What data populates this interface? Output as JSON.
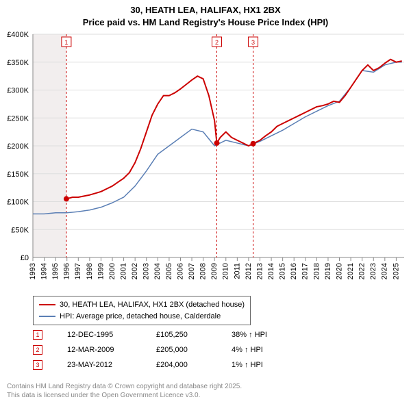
{
  "title_line1": "30, HEATH LEA, HALIFAX, HX1 2BX",
  "title_line2": "Price paid vs. HM Land Registry's House Price Index (HPI)",
  "chart": {
    "type": "line",
    "background_color": "#ffffff",
    "plot_bg_left": "#f2eeee",
    "plot_bg_right": "#ffffff",
    "grid_color": "#dddddd",
    "axis_color": "#888888",
    "tick_fontsize": 11,
    "x_years": [
      1993,
      1994,
      1995,
      1996,
      1997,
      1998,
      1999,
      2000,
      2001,
      2002,
      2003,
      2004,
      2005,
      2006,
      2007,
      2008,
      2009,
      2010,
      2011,
      2012,
      2013,
      2014,
      2015,
      2016,
      2017,
      2018,
      2019,
      2020,
      2021,
      2022,
      2023,
      2024,
      2025
    ],
    "x_range": [
      1993,
      2025.7
    ],
    "y_range": [
      0,
      400
    ],
    "y_ticks": [
      0,
      50,
      100,
      150,
      200,
      250,
      300,
      350,
      400
    ],
    "y_tick_labels": [
      "£0",
      "£50K",
      "£100K",
      "£150K",
      "£200K",
      "£250K",
      "£300K",
      "£350K",
      "£400K"
    ],
    "series": [
      {
        "name": "price_paid",
        "label": "30, HEATH LEA, HALIFAX, HX1 2BX (detached house)",
        "color": "#cc0000",
        "width": 2,
        "data": [
          [
            1995.95,
            105
          ],
          [
            1996.5,
            108
          ],
          [
            1997,
            108
          ],
          [
            1997.5,
            110
          ],
          [
            1998,
            112
          ],
          [
            1998.5,
            115
          ],
          [
            1999,
            118
          ],
          [
            1999.5,
            123
          ],
          [
            2000,
            128
          ],
          [
            2000.5,
            135
          ],
          [
            2001,
            142
          ],
          [
            2001.5,
            152
          ],
          [
            2002,
            170
          ],
          [
            2002.5,
            195
          ],
          [
            2003,
            225
          ],
          [
            2003.5,
            255
          ],
          [
            2004,
            275
          ],
          [
            2004.5,
            290
          ],
          [
            2005,
            290
          ],
          [
            2005.5,
            295
          ],
          [
            2006,
            302
          ],
          [
            2006.5,
            310
          ],
          [
            2007,
            318
          ],
          [
            2007.5,
            325
          ],
          [
            2008,
            320
          ],
          [
            2008.5,
            290
          ],
          [
            2009,
            245
          ],
          [
            2009.2,
            205
          ],
          [
            2009.5,
            215
          ],
          [
            2010,
            225
          ],
          [
            2010.5,
            215
          ],
          [
            2011,
            210
          ],
          [
            2011.5,
            205
          ],
          [
            2012,
            200
          ],
          [
            2012.4,
            204
          ],
          [
            2013,
            210
          ],
          [
            2013.5,
            218
          ],
          [
            2014,
            225
          ],
          [
            2014.5,
            235
          ],
          [
            2015,
            240
          ],
          [
            2015.5,
            245
          ],
          [
            2016,
            250
          ],
          [
            2016.5,
            255
          ],
          [
            2017,
            260
          ],
          [
            2017.5,
            265
          ],
          [
            2018,
            270
          ],
          [
            2018.5,
            272
          ],
          [
            2019,
            275
          ],
          [
            2019.5,
            280
          ],
          [
            2020,
            278
          ],
          [
            2020.5,
            290
          ],
          [
            2021,
            305
          ],
          [
            2021.5,
            320
          ],
          [
            2022,
            335
          ],
          [
            2022.5,
            345
          ],
          [
            2023,
            335
          ],
          [
            2023.5,
            340
          ],
          [
            2024,
            348
          ],
          [
            2024.5,
            355
          ],
          [
            2025,
            350
          ],
          [
            2025.5,
            352
          ]
        ]
      },
      {
        "name": "hpi",
        "label": "HPI: Average price, detached house, Calderdale",
        "color": "#5b7fb5",
        "width": 1.5,
        "data": [
          [
            1993,
            78
          ],
          [
            1994,
            78
          ],
          [
            1995,
            80
          ],
          [
            1996,
            80
          ],
          [
            1997,
            82
          ],
          [
            1998,
            85
          ],
          [
            1999,
            90
          ],
          [
            2000,
            98
          ],
          [
            2001,
            108
          ],
          [
            2002,
            128
          ],
          [
            2003,
            155
          ],
          [
            2004,
            185
          ],
          [
            2005,
            200
          ],
          [
            2006,
            215
          ],
          [
            2007,
            230
          ],
          [
            2008,
            225
          ],
          [
            2009,
            200
          ],
          [
            2010,
            210
          ],
          [
            2011,
            205
          ],
          [
            2012,
            200
          ],
          [
            2013,
            208
          ],
          [
            2014,
            218
          ],
          [
            2015,
            228
          ],
          [
            2016,
            240
          ],
          [
            2017,
            252
          ],
          [
            2018,
            262
          ],
          [
            2019,
            272
          ],
          [
            2020,
            280
          ],
          [
            2021,
            305
          ],
          [
            2022,
            335
          ],
          [
            2023,
            332
          ],
          [
            2024,
            345
          ],
          [
            2025,
            350
          ],
          [
            2025.5,
            350
          ]
        ]
      }
    ],
    "markers": [
      {
        "n": "1",
        "x": 1995.95,
        "date": "12-DEC-1995",
        "price": "£105,250",
        "delta": "38% ↑ HPI"
      },
      {
        "n": "2",
        "x": 2009.2,
        "date": "12-MAR-2009",
        "price": "£205,000",
        "delta": "4% ↑ HPI"
      },
      {
        "n": "3",
        "x": 2012.4,
        "date": "23-MAY-2012",
        "price": "£204,000",
        "delta": "1% ↑ HPI"
      }
    ],
    "marker_color": "#cc0000",
    "marker_point_color": "#cc0000"
  },
  "footer_line1": "Contains HM Land Registry data © Crown copyright and database right 2025.",
  "footer_line2": "This data is licensed under the Open Government Licence v3.0."
}
